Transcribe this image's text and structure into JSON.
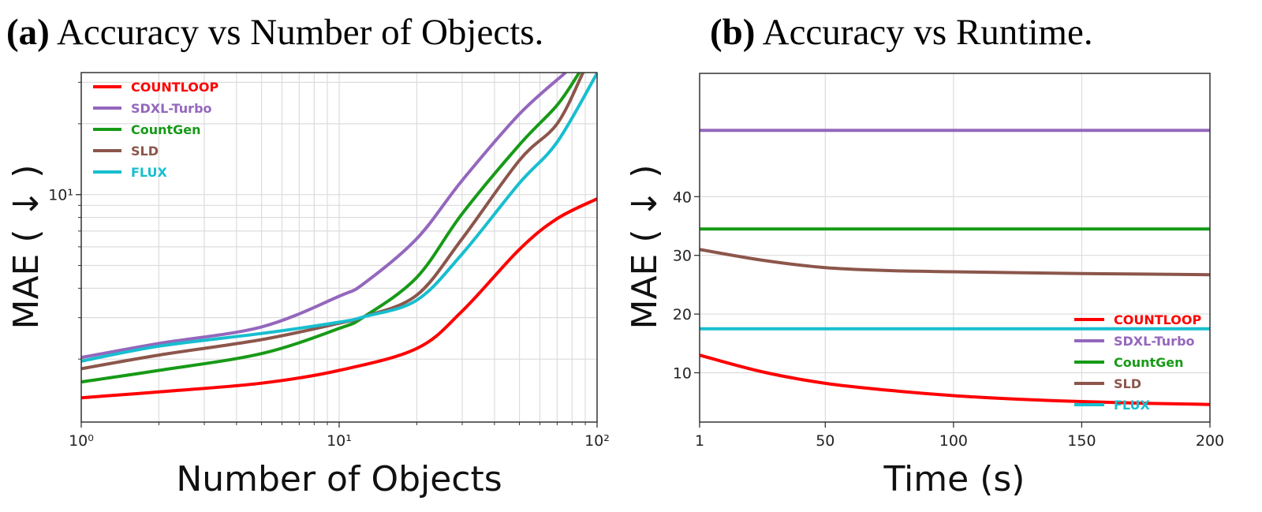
{
  "chart_data": [
    {
      "type": "line",
      "title_prefix": "(a)",
      "title": "Accuracy vs Number of Objects.",
      "xlabel": "Number of Objects",
      "ylabel": "MAE ( ↓ )",
      "xscale": "log",
      "yscale": "log",
      "xlim": [
        1,
        100
      ],
      "ylim": [
        1.08,
        33
      ],
      "xticks": [
        1,
        10,
        100
      ],
      "xtick_labels": [
        "10⁰",
        "10¹",
        "10²"
      ],
      "yticks": [
        10
      ],
      "ytick_labels": [
        "10¹"
      ],
      "grid": true,
      "legend_position": "top-left",
      "series": [
        {
          "name": "COUNTLOOP",
          "color": "#ff0000",
          "x": [
            1,
            2,
            5,
            10,
            20,
            30,
            50,
            70,
            100
          ],
          "y": [
            1.37,
            1.45,
            1.58,
            1.79,
            2.22,
            3.2,
            5.85,
            7.9,
            9.6
          ]
        },
        {
          "name": "SDXL-Turbo",
          "color": "#9467bd",
          "x": [
            1,
            2,
            5,
            10,
            12.5,
            20,
            30,
            50,
            75
          ],
          "y": [
            2.03,
            2.33,
            2.74,
            3.7,
            4.2,
            6.5,
            11.5,
            22,
            32.8
          ]
        },
        {
          "name": "CountGen",
          "color": "#179a17",
          "x": [
            1,
            2,
            5,
            10,
            12.5,
            20,
            30,
            50,
            70,
            85
          ],
          "y": [
            1.6,
            1.79,
            2.11,
            2.7,
            3.03,
            4.45,
            8.3,
            16.3,
            24,
            32.8
          ]
        },
        {
          "name": "SLD",
          "color": "#8c564b",
          "x": [
            1,
            2,
            5,
            10,
            12.5,
            20,
            30,
            50,
            70,
            88
          ],
          "y": [
            1.82,
            2.08,
            2.42,
            2.84,
            3.03,
            3.74,
            6.5,
            14,
            20,
            32.8
          ]
        },
        {
          "name": "FLUX",
          "color": "#17becf",
          "x": [
            1,
            2,
            5,
            10,
            12.5,
            20,
            30,
            50,
            70,
            100
          ],
          "y": [
            1.96,
            2.27,
            2.57,
            2.87,
            3.03,
            3.56,
            5.6,
            11.2,
            16.7,
            32.8
          ]
        }
      ]
    },
    {
      "type": "line",
      "title_prefix": "(b)",
      "title": "Accuracy vs Runtime.",
      "xlabel": "Time (s)",
      "ylabel": "MAE ( ↓ )",
      "xscale": "linear",
      "yscale": "linear",
      "xlim": [
        1,
        200
      ],
      "ylim": [
        1.6,
        61
      ],
      "xticks": [
        1,
        50,
        100,
        150,
        200
      ],
      "xtick_labels": [
        "1",
        "50",
        "100",
        "150",
        "200"
      ],
      "yticks": [
        10,
        20,
        30,
        40
      ],
      "ytick_labels": [
        "10",
        "20",
        "30",
        "40"
      ],
      "grid": true,
      "legend_position": "bottom-right",
      "series": [
        {
          "name": "COUNTLOOP",
          "color": "#ff0000",
          "x": [
            1,
            25,
            50,
            75,
            100,
            125,
            150,
            175,
            200
          ],
          "y": [
            13,
            10.2,
            8.2,
            7,
            6.1,
            5.5,
            5.1,
            4.8,
            4.6
          ]
        },
        {
          "name": "SDXL-Turbo",
          "color": "#9467bd",
          "x": [
            1,
            200
          ],
          "y": [
            51.3,
            51.3
          ]
        },
        {
          "name": "CountGen",
          "color": "#179a17",
          "x": [
            1,
            200
          ],
          "y": [
            34.5,
            34.5
          ]
        },
        {
          "name": "SLD",
          "color": "#8c564b",
          "x": [
            1,
            25,
            50,
            75,
            100,
            150,
            200
          ],
          "y": [
            31,
            29.2,
            27.9,
            27.4,
            27.2,
            26.9,
            26.7
          ]
        },
        {
          "name": "FLUX",
          "color": "#17becf",
          "x": [
            1,
            200
          ],
          "y": [
            17.5,
            17.5
          ]
        }
      ]
    }
  ]
}
